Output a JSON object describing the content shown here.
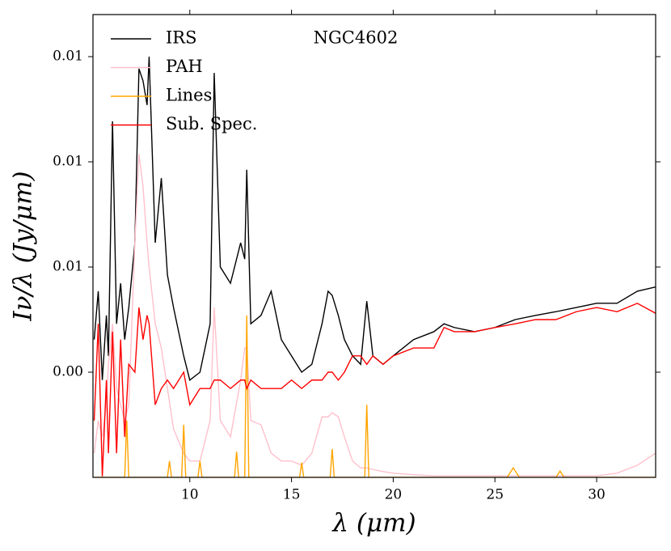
{
  "chart_data": {
    "type": "line",
    "annotation": "NGC4602",
    "xlabel": "λ (μm)",
    "ylabel": "Iν/λ (Jy/μm)",
    "legend": "upper left",
    "xlim": [
      5.24,
      32.9
    ],
    "ylim": [
      0.002,
      0.0108
    ],
    "xticks": [
      10,
      15,
      20,
      25,
      30
    ],
    "yticks": [
      {
        "value": 0.004,
        "label": "0.00"
      },
      {
        "value": 0.006,
        "label": "0.01"
      },
      {
        "value": 0.008,
        "label": "0.01"
      },
      0.01
    ],
    "x": [
      5.3,
      5.5,
      5.7,
      5.9,
      6.0,
      6.2,
      6.4,
      6.6,
      6.8,
      7.0,
      7.3,
      7.5,
      7.7,
      7.9,
      8.0,
      8.3,
      8.6,
      8.9,
      9.2,
      9.7,
      10.0,
      10.5,
      11.0,
      11.2,
      11.5,
      12.0,
      12.5,
      12.7,
      12.8,
      13.0,
      13.5,
      14.0,
      14.5,
      15.0,
      15.5,
      16.0,
      16.5,
      16.8,
      17.0,
      17.3,
      17.6,
      18.0,
      18.4,
      18.7,
      19.0,
      19.5,
      20,
      21,
      22,
      22.5,
      23,
      24,
      25,
      26,
      27,
      28,
      29,
      30,
      31,
      32,
      32.9
    ],
    "series": [
      {
        "name": "IRS",
        "color": "#000000",
        "values": [
          0.00462,
          0.00554,
          0.00385,
          0.00508,
          0.00431,
          0.00877,
          0.00492,
          0.00569,
          0.00462,
          0.00523,
          0.00646,
          0.00977,
          0.00954,
          0.00908,
          0.01,
          0.00646,
          0.00769,
          0.00585,
          0.00523,
          0.00431,
          0.00385,
          0.004,
          0.00492,
          0.00969,
          0.006,
          0.00569,
          0.00646,
          0.00615,
          0.00785,
          0.00492,
          0.00508,
          0.00554,
          0.00462,
          0.00431,
          0.004,
          0.00415,
          0.00492,
          0.00554,
          0.00546,
          0.00508,
          0.00462,
          0.00431,
          0.00415,
          0.00535,
          0.00431,
          0.00415,
          0.00431,
          0.00462,
          0.00477,
          0.00492,
          0.00485,
          0.00477,
          0.00485,
          0.005,
          0.00508,
          0.00515,
          0.00523,
          0.00531,
          0.00531,
          0.00554,
          0.00562
        ]
      },
      {
        "name": "PAH",
        "color": "#ffc0cb",
        "values": [
          0.00246,
          0.00308,
          0.00277,
          0.00338,
          0.00415,
          0.00492,
          0.00369,
          0.00338,
          0.00308,
          0.00338,
          0.00646,
          0.00815,
          0.00754,
          0.00646,
          0.006,
          0.00492,
          0.00446,
          0.00369,
          0.00292,
          0.00246,
          0.00231,
          0.00231,
          0.00308,
          0.00523,
          0.00308,
          0.00277,
          0.00385,
          0.00446,
          0.00446,
          0.00308,
          0.003,
          0.00246,
          0.00231,
          0.00231,
          0.00223,
          0.00246,
          0.00315,
          0.00315,
          0.00323,
          0.00315,
          0.00277,
          0.00231,
          0.00218,
          0.00218,
          0.00215,
          0.00211,
          0.00208,
          0.00205,
          0.00203,
          0.00203,
          0.00203,
          0.00203,
          0.00203,
          0.00203,
          0.00203,
          0.00203,
          0.00203,
          0.00203,
          0.00208,
          0.00223,
          0.00246
        ]
      },
      {
        "name": "Lines",
        "color": "#ffa500",
        "x": [
          5.3,
          6.8,
          6.9,
          7.0,
          8.9,
          9.0,
          9.1,
          9.6,
          9.7,
          9.8,
          10.4,
          10.5,
          10.6,
          12.2,
          12.3,
          12.4,
          12.7,
          12.8,
          12.9,
          15.4,
          15.5,
          15.6,
          16.9,
          17.0,
          17.1,
          18.6,
          18.7,
          18.8,
          25.6,
          25.9,
          26.2,
          28.0,
          28.2,
          28.4,
          32.9
        ],
        "values": [
          0.002,
          0.002,
          0.00308,
          0.002,
          0.002,
          0.00231,
          0.002,
          0.002,
          0.003,
          0.002,
          0.002,
          0.00231,
          0.002,
          0.002,
          0.00249,
          0.002,
          0.002,
          0.00508,
          0.002,
          0.002,
          0.00228,
          0.002,
          0.002,
          0.00254,
          0.002,
          0.002,
          0.00338,
          0.002,
          0.002,
          0.00218,
          0.002,
          0.002,
          0.00212,
          0.002,
          0.002
        ]
      },
      {
        "name": "Sub. Spec.",
        "color": "#ff0000",
        "values": [
          0.00308,
          0.00492,
          0.00202,
          0.00385,
          0.00246,
          0.00477,
          0.00246,
          0.00462,
          0.00277,
          0.00415,
          0.004,
          0.00523,
          0.00462,
          0.00508,
          0.00492,
          0.00338,
          0.00369,
          0.00385,
          0.00369,
          0.004,
          0.00338,
          0.00369,
          0.00369,
          0.00385,
          0.00385,
          0.00369,
          0.00385,
          0.00385,
          0.00369,
          0.00385,
          0.00369,
          0.00369,
          0.00369,
          0.00385,
          0.00369,
          0.00385,
          0.00385,
          0.004,
          0.004,
          0.00385,
          0.004,
          0.00431,
          0.00431,
          0.00415,
          0.00431,
          0.00415,
          0.00431,
          0.00446,
          0.00446,
          0.00485,
          0.00477,
          0.00477,
          0.00485,
          0.00492,
          0.005,
          0.005,
          0.00515,
          0.00523,
          0.00515,
          0.00531,
          0.00512
        ]
      }
    ]
  }
}
